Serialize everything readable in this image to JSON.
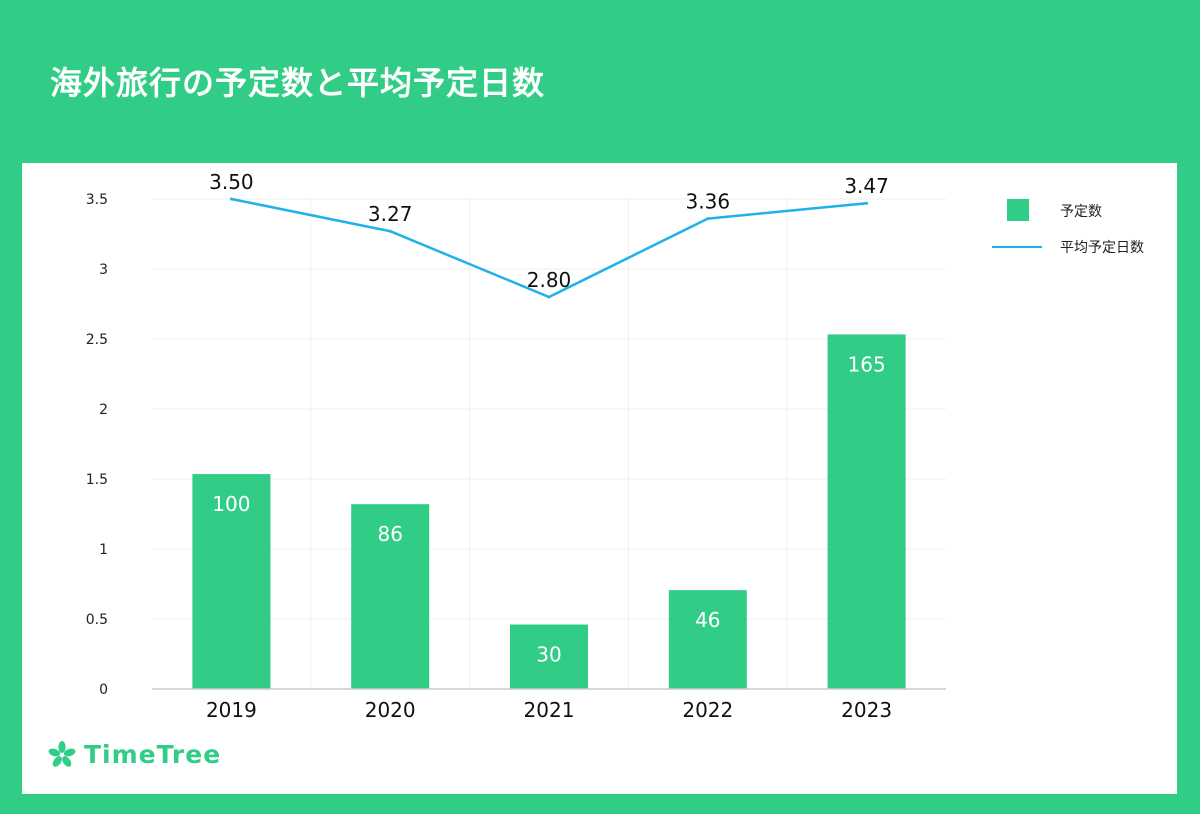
{
  "header": {
    "title": "海外旅行の予定数と平均予定日数"
  },
  "brand": {
    "name": "TimeTree",
    "icon": "leaf-icon",
    "color": "#31cd87"
  },
  "chart_data": {
    "type": "bar",
    "title": "海外旅行の予定数と平均予定日数",
    "categories": [
      "2019",
      "2020",
      "2021",
      "2022",
      "2023"
    ],
    "series": [
      {
        "name": "予定数",
        "type": "bar",
        "values": [
          100,
          86,
          30,
          46,
          165
        ],
        "labels": [
          "100",
          "86",
          "30",
          "46",
          "165"
        ],
        "color": "#31cd87"
      },
      {
        "name": "平均予定日数",
        "type": "line",
        "values": [
          3.5,
          3.27,
          2.8,
          3.36,
          3.47
        ],
        "labels": [
          "3.50",
          "3.27",
          "2.80",
          "3.36",
          "3.47"
        ],
        "color": "#1fb2ea"
      }
    ],
    "yticks": [
      "0",
      "0.5",
      "1",
      "1.5",
      "2",
      "2.5",
      "3",
      "3.5"
    ],
    "ylim": [
      0,
      3.5
    ],
    "bar_ylim": [
      0,
      228
    ],
    "grid": true,
    "legend": "top-right"
  }
}
